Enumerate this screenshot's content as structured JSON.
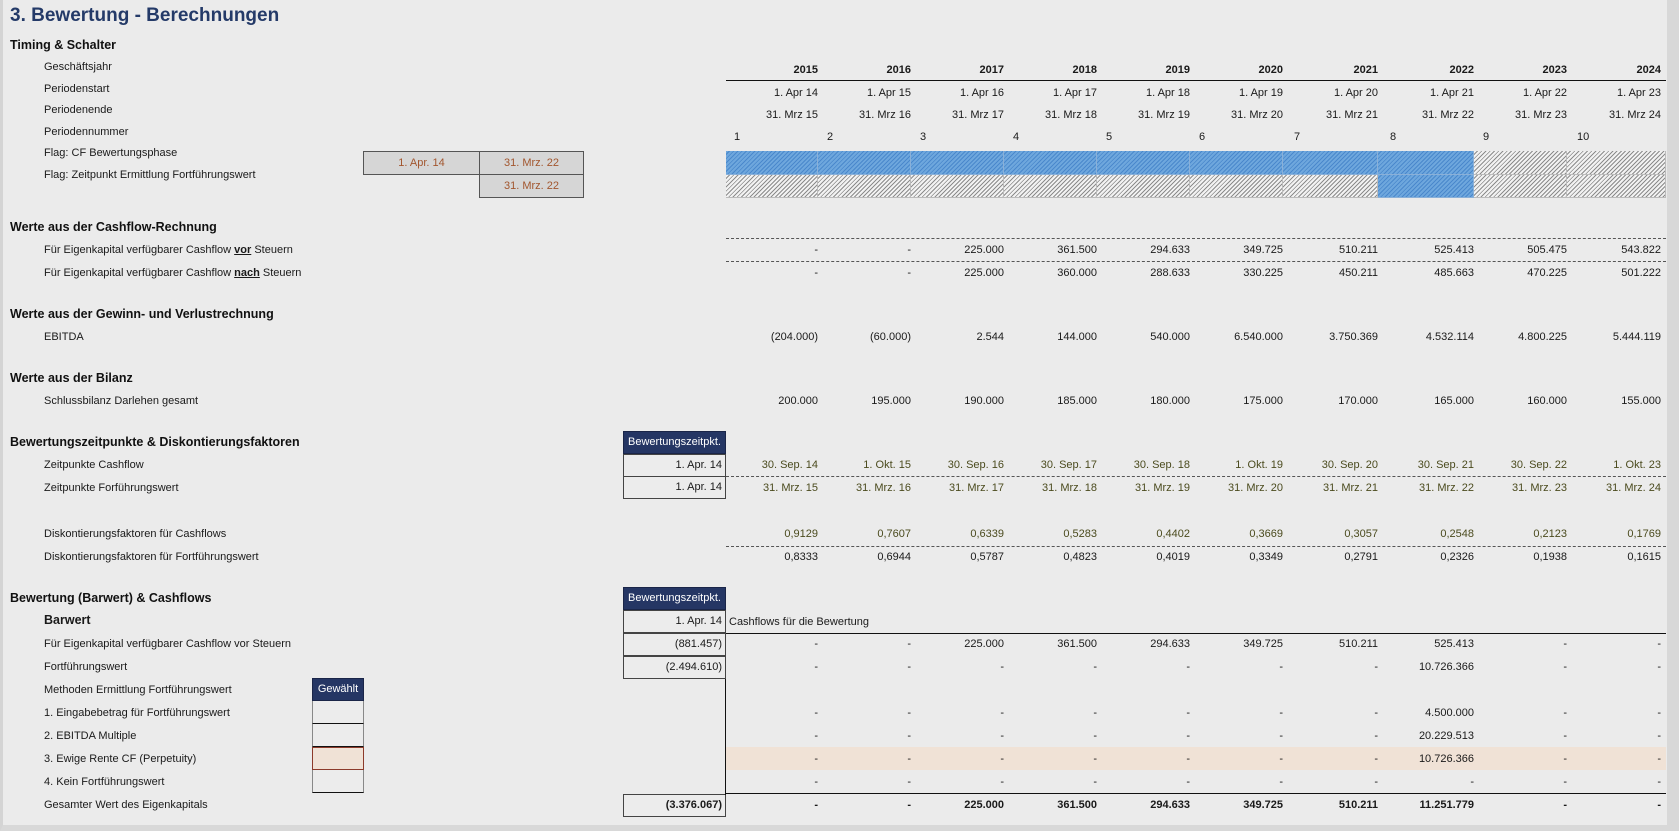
{
  "title": "3. Bewertung - Berechnungen",
  "colors": {
    "navy": "#253664",
    "title": "#243a68",
    "flag_blue": "#5b9ad8",
    "highlight": "#f0e2d6",
    "date_orange": "#a2562e"
  },
  "timing": {
    "heading": "Timing & Schalter",
    "labels": {
      "fiscal_year": "Geschäftsjahr",
      "period_start": "Periodenstart",
      "period_end": "Periodenende",
      "period_number": "Periodennummer",
      "flag_cf": "Flag: CF Bewertungsphase",
      "flag_tv": "Flag: Zeitpunkt Ermittlung Fortführungswert"
    },
    "flag_cf_start": "1. Apr. 14",
    "flag_cf_end": "31. Mrz. 22",
    "flag_tv_date": "31. Mrz. 22",
    "years": [
      "2015",
      "2016",
      "2017",
      "2018",
      "2019",
      "2020",
      "2021",
      "2022",
      "2023",
      "2024"
    ],
    "period_start": [
      "1. Apr 14",
      "1. Apr 15",
      "1. Apr 16",
      "1. Apr 17",
      "1. Apr 18",
      "1. Apr 19",
      "1. Apr 20",
      "1. Apr 21",
      "1. Apr 22",
      "1. Apr 23"
    ],
    "period_end": [
      "31. Mrz 15",
      "31. Mrz 16",
      "31. Mrz 17",
      "31. Mrz 18",
      "31. Mrz 19",
      "31. Mrz 20",
      "31. Mrz 21",
      "31. Mrz 22",
      "31. Mrz 23",
      "31. Mrz 24"
    ],
    "period_number": [
      "1",
      "2",
      "3",
      "4",
      "5",
      "6",
      "7",
      "8",
      "9",
      "10"
    ],
    "flag_cf": [
      1,
      1,
      1,
      1,
      1,
      1,
      1,
      1,
      0,
      0
    ],
    "flag_tv": [
      0,
      0,
      0,
      0,
      0,
      0,
      0,
      1,
      0,
      0
    ]
  },
  "cashflow": {
    "heading": "Werte aus der Cashflow-Rechnung",
    "label_pre_a": "Für Eigenkapital verfügbarer Cashflow ",
    "label_pre_b": "vor",
    "label_pre_c": " Steuern",
    "label_post_a": "Für Eigenkapital verfügbarer Cashflow ",
    "label_post_b": "nach",
    "label_post_c": " Steuern",
    "pre_tax": [
      "-",
      "-",
      "225.000",
      "361.500",
      "294.633",
      "349.725",
      "510.211",
      "525.413",
      "505.475",
      "543.822"
    ],
    "post_tax": [
      "-",
      "-",
      "225.000",
      "360.000",
      "288.633",
      "330.225",
      "450.211",
      "485.663",
      "470.225",
      "501.222"
    ]
  },
  "pnl": {
    "heading": "Werte aus der Gewinn- und Verlustrechnung",
    "ebitda_label": "EBITDA",
    "ebitda": [
      "(204.000)",
      "(60.000)",
      "2.544",
      "144.000",
      "540.000",
      "6.540.000",
      "3.750.369",
      "4.532.114",
      "4.800.225",
      "5.444.119"
    ]
  },
  "balance": {
    "heading": "Werte aus der Bilanz",
    "loans_label": "Schlussbilanz Darlehen gesamt",
    "loans": [
      "200.000",
      "195.000",
      "190.000",
      "185.000",
      "180.000",
      "175.000",
      "170.000",
      "165.000",
      "160.000",
      "155.000"
    ]
  },
  "discount": {
    "heading": "Bewertungszeitpunkte & Diskontierungsfaktoren",
    "valuation_header": "Bewertungszeitpkt.",
    "cf_dates_label": "Zeitpunkte Cashflow",
    "tv_dates_label": "Zeitpunkte Forführungswert",
    "cf_valuation_date": "1. Apr. 14",
    "tv_valuation_date": "1. Apr. 14",
    "cf_dates": [
      "30. Sep. 14",
      "1. Okt. 15",
      "30. Sep. 16",
      "30. Sep. 17",
      "30. Sep. 18",
      "1. Okt. 19",
      "30. Sep. 20",
      "30. Sep. 21",
      "30. Sep. 22",
      "1. Okt. 23"
    ],
    "tv_dates": [
      "31. Mrz. 15",
      "31. Mrz. 16",
      "31. Mrz. 17",
      "31. Mrz. 18",
      "31. Mrz. 19",
      "31. Mrz. 20",
      "31. Mrz. 21",
      "31. Mrz. 22",
      "31. Mrz. 23",
      "31. Mrz. 24"
    ],
    "df_cf_label": "Diskontierungsfaktoren für Cashflows",
    "df_tv_label": "Diskontierungsfaktoren für Fortführungswert",
    "df_cf": [
      "0,9129",
      "0,7607",
      "0,6339",
      "0,5283",
      "0,4402",
      "0,3669",
      "0,3057",
      "0,2548",
      "0,2123",
      "0,1769"
    ],
    "df_tv": [
      "0,8333",
      "0,6944",
      "0,5787",
      "0,4823",
      "0,4019",
      "0,3349",
      "0,2791",
      "0,2326",
      "0,1938",
      "0,1615"
    ]
  },
  "valuation": {
    "heading": "Bewertung (Barwert) & Cashflows",
    "valuation_header": "Bewertungszeitpkt.",
    "pv_label": "Barwert",
    "pv_date": "1. Apr. 14",
    "cf_caption": "Cashflows für die Bewertung",
    "cf_label": "Für Eigenkapital verfügbarer Cashflow vor Steuern",
    "cf_pv": "(881.457)",
    "cf": [
      "-",
      "-",
      "225.000",
      "361.500",
      "294.633",
      "349.725",
      "510.211",
      "525.413",
      "-",
      "-"
    ],
    "tv_label": "Fortführungswert",
    "tv_pv": "(2.494.610)",
    "tv": [
      "-",
      "-",
      "-",
      "-",
      "-",
      "-",
      "-",
      "10.726.366",
      "-",
      "-"
    ],
    "methods_label": "Methoden Ermittlung Fortführungswert",
    "chosen_header": "Gewählt",
    "methods": [
      {
        "label": "1. Eingabebetrag für Fortführungswert",
        "values": [
          "-",
          "-",
          "-",
          "-",
          "-",
          "-",
          "-",
          "4.500.000",
          "-",
          "-"
        ],
        "selected": false
      },
      {
        "label": "2. EBITDA Multiple",
        "values": [
          "-",
          "-",
          "-",
          "-",
          "-",
          "-",
          "-",
          "20.229.513",
          "-",
          "-"
        ],
        "selected": false
      },
      {
        "label": "3. Ewige Rente CF (Perpetuity)",
        "values": [
          "-",
          "-",
          "-",
          "-",
          "-",
          "-",
          "-",
          "10.726.366",
          "-",
          "-"
        ],
        "selected": true
      },
      {
        "label": "4. Kein Fortführungswert",
        "values": [
          "-",
          "-",
          "-",
          "-",
          "-",
          "-",
          "-",
          "-",
          "-",
          "-"
        ],
        "selected": false
      }
    ],
    "total_label": "Gesamter Wert des Eigenkapitals",
    "total_pv": "(3.376.067)",
    "total": [
      "-",
      "-",
      "225.000",
      "361.500",
      "294.633",
      "349.725",
      "510.211",
      "11.251.779",
      "-",
      "-"
    ]
  }
}
